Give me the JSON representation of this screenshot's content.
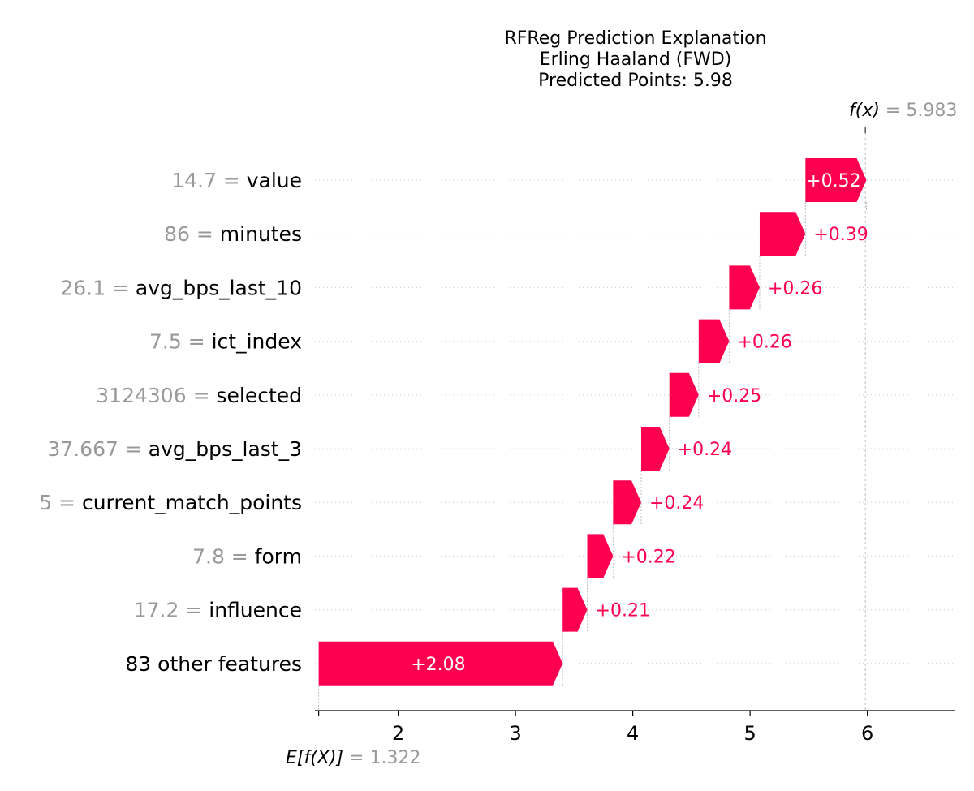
{
  "chart_data": {
    "type": "waterfall",
    "title_lines": [
      "RFReg Prediction Explanation",
      "Erling Haaland (FWD)",
      "Predicted Points: 5.98"
    ],
    "base_value": 1.322,
    "base_label": "E[f(X)]",
    "base_value_text": "1.322",
    "output_value": 5.983,
    "output_label": "f(x)",
    "output_value_text": "5.983",
    "xlim": [
      1.29,
      6.75
    ],
    "x_ticks": [
      2,
      3,
      4,
      5,
      6
    ],
    "x_tick_labels": [
      "2",
      "3",
      "4",
      "5",
      "6"
    ],
    "grid": "dotted horizontal row lines",
    "positive_color": "#ff0051",
    "features": [
      {
        "value": "14.7",
        "name": "value",
        "contribution": 0.52,
        "contrib_text": "+0.52",
        "label_inside": true
      },
      {
        "value": "86",
        "name": "minutes",
        "contribution": 0.39,
        "contrib_text": "+0.39",
        "label_inside": false
      },
      {
        "value": "26.1",
        "name": "avg_bps_last_10",
        "contribution": 0.26,
        "contrib_text": "+0.26",
        "label_inside": false
      },
      {
        "value": "7.5",
        "name": "ict_index",
        "contribution": 0.26,
        "contrib_text": "+0.26",
        "label_inside": false
      },
      {
        "value": "3124306",
        "name": "selected",
        "contribution": 0.25,
        "contrib_text": "+0.25",
        "label_inside": false
      },
      {
        "value": "37.667",
        "name": "avg_bps_last_3",
        "contribution": 0.24,
        "contrib_text": "+0.24",
        "label_inside": false
      },
      {
        "value": "5",
        "name": "current_match_points",
        "contribution": 0.24,
        "contrib_text": "+0.24",
        "label_inside": false
      },
      {
        "value": "7.8",
        "name": "form",
        "contribution": 0.22,
        "contrib_text": "+0.22",
        "label_inside": false
      },
      {
        "value": "17.2",
        "name": "influence",
        "contribution": 0.21,
        "contrib_text": "+0.21",
        "label_inside": false
      },
      {
        "value": "",
        "name": "83 other features",
        "contribution": 2.08,
        "contrib_text": "+2.08",
        "label_inside": true
      }
    ]
  }
}
